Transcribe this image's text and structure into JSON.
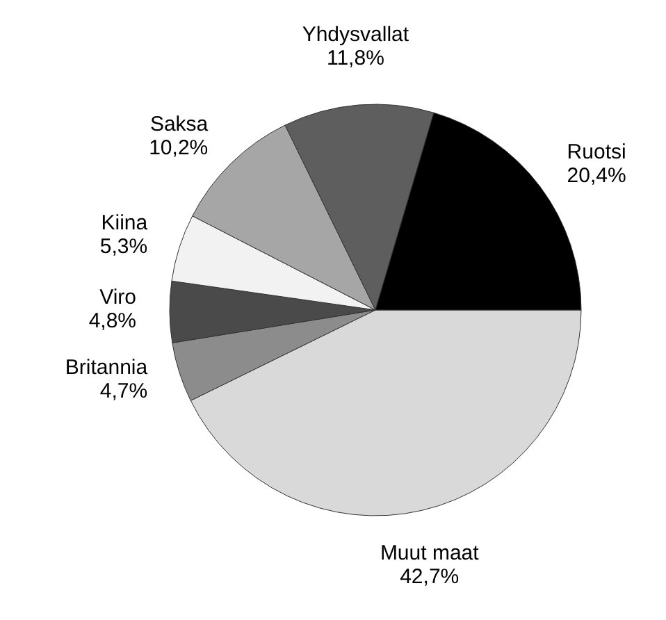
{
  "chart_data": {
    "type": "pie",
    "categories": [
      "Muut maat",
      "Britannia",
      "Viro",
      "Kiina",
      "Saksa",
      "Yhdysvallat",
      "Ruotsi"
    ],
    "values": [
      42.7,
      4.7,
      4.8,
      5.3,
      10.2,
      11.8,
      20.4
    ],
    "value_labels": [
      "42,7%",
      "4,7%",
      "4,8%",
      "5,3%",
      "10,2%",
      "11,8%",
      "20,4%"
    ],
    "colors": [
      "#d9d9d9",
      "#8c8c8c",
      "#4a4a4a",
      "#f2f2f2",
      "#a6a6a6",
      "#5e5e5e",
      "#000000"
    ]
  }
}
